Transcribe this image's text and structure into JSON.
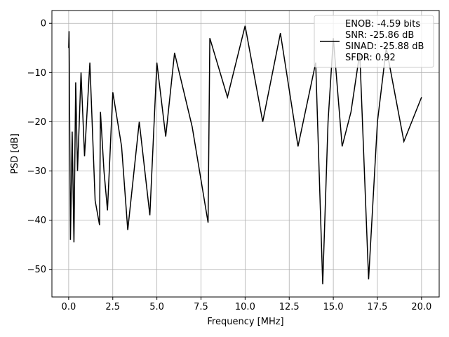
{
  "chart_data": {
    "type": "line",
    "title": "",
    "xlabel": "Frequency [MHz]",
    "ylabel": "PSD [dB]",
    "xlim": [
      -0.95,
      21.0
    ],
    "ylim": [
      -55.6,
      2.6
    ],
    "x_ticks": [
      0.0,
      2.5,
      5.0,
      7.5,
      10.0,
      12.5,
      15.0,
      17.5,
      20.0
    ],
    "x_tick_labels": [
      "0.0",
      "2.5",
      "5.0",
      "7.5",
      "10.0",
      "12.5",
      "15.0",
      "17.5",
      "20.0"
    ],
    "y_ticks": [
      0,
      -10,
      -20,
      -30,
      -40,
      -50
    ],
    "y_tick_labels": [
      "0",
      "−10",
      "−20",
      "−30",
      "−40",
      "−50"
    ],
    "grid": true,
    "legend_position": "top-right",
    "line_color": "#000000",
    "series": [
      {
        "name": "ENOB: -4.59 bits\nSNR: -25.86 dB\nSINAD: -25.88 dB\nSFDR: 0.92",
        "x": [
          0.0,
          0.02,
          0.05,
          0.1,
          0.2,
          0.3,
          0.4,
          0.5,
          0.7,
          0.9,
          1.2,
          1.5,
          1.75,
          1.8,
          2.0,
          2.2,
          2.5,
          3.0,
          3.35,
          4.0,
          4.6,
          5.0,
          5.5,
          6.0,
          7.0,
          7.9,
          8.0,
          9.0,
          10.0,
          11.0,
          12.0,
          13.0,
          14.0,
          14.4,
          14.7,
          15.0,
          15.5,
          16.0,
          16.5,
          17.0,
          17.5,
          18.0,
          19.0,
          20.0
        ],
        "y": [
          -5.0,
          -1.6,
          -15.0,
          -44.0,
          -22.0,
          -44.5,
          -12.0,
          -30.0,
          -10.0,
          -27.0,
          -8.0,
          -36.0,
          -41.0,
          -18.0,
          -30.0,
          -38.0,
          -14.0,
          -25.0,
          -42.0,
          -20.0,
          -39.0,
          -8.0,
          -23.0,
          -6.0,
          -21.0,
          -40.5,
          -3.0,
          -15.0,
          -0.5,
          -20.0,
          -2.0,
          -25.0,
          -8.0,
          -53.0,
          -20.0,
          -3.0,
          -25.0,
          -18.0,
          -6.0,
          -52.0,
          -20.0,
          -5.0,
          -24.0,
          -15.0
        ]
      }
    ],
    "legend_lines": [
      "ENOB: -4.59 bits",
      "SNR: -25.86 dB",
      "SINAD: -25.88 dB",
      "SFDR: 0.92"
    ]
  }
}
